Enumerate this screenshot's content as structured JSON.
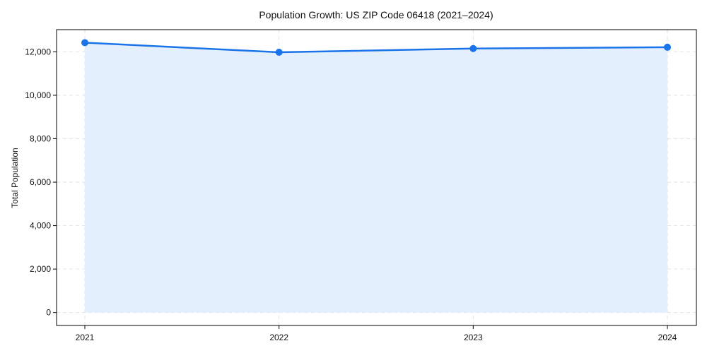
{
  "chart_data": {
    "type": "area",
    "title": "Population Growth: US ZIP Code 06418 (2021–2024)",
    "xlabel": "",
    "ylabel": "Total Population",
    "categories": [
      "2021",
      "2022",
      "2023",
      "2024"
    ],
    "series": [
      {
        "name": "Total Population",
        "values": [
          12420,
          11980,
          12150,
          12210
        ]
      }
    ],
    "ylim": [
      -595,
      13020
    ],
    "yticks": [
      0,
      2000,
      4000,
      6000,
      8000,
      10000,
      12000
    ],
    "ytick_labels": [
      "0",
      "2,000",
      "4,000",
      "6,000",
      "8,000",
      "10,000",
      "12,000"
    ],
    "grid": true,
    "legend": null,
    "colors": {
      "line": "#1a73e8",
      "fill": "#e3eefd",
      "grid": "#d9dde3",
      "axis": "#000000"
    }
  }
}
